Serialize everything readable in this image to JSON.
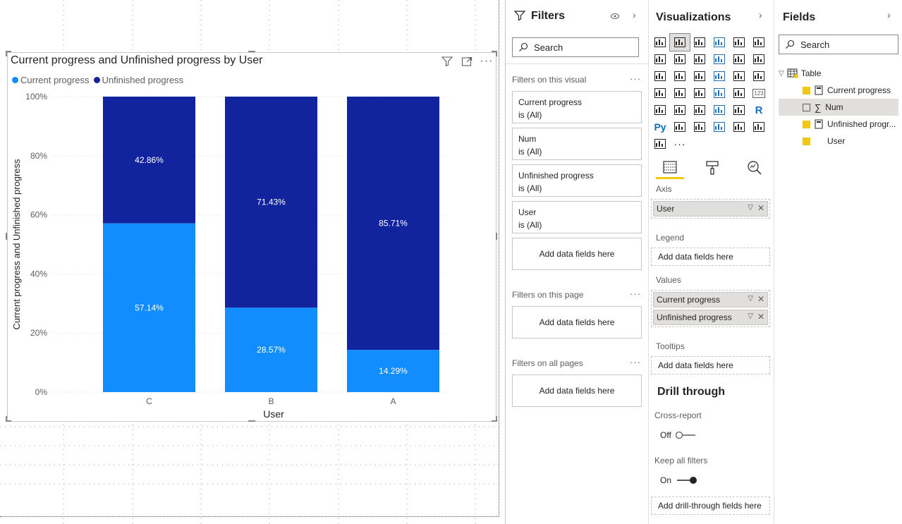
{
  "chart_data": {
    "type": "bar",
    "stacked": true,
    "normalized": true,
    "title": "Current progress and Unfinished progress by User",
    "xlabel": "User",
    "ylabel": "Current progress and Unfinished progress",
    "categories": [
      "C",
      "B",
      "A"
    ],
    "series": [
      {
        "name": "Current progress",
        "values": [
          57.14,
          28.57,
          14.29
        ],
        "labels": [
          "57.14%",
          "28.57%",
          "14.29%"
        ],
        "color": "#118dff"
      },
      {
        "name": "Unfinished progress",
        "values": [
          42.86,
          71.43,
          85.71
        ],
        "labels": [
          "42.86%",
          "71.43%",
          "85.71%"
        ],
        "color": "#12239e"
      }
    ],
    "yticks": [
      "0%",
      "20%",
      "40%",
      "60%",
      "80%",
      "100%"
    ],
    "ylim": [
      0,
      100
    ],
    "legend": "top-left",
    "grid": true
  },
  "filters": {
    "title": "Filters",
    "search_placeholder": "Search",
    "on_visual_label": "Filters on this visual",
    "cards": [
      {
        "name": "Current progress",
        "state": "is (All)"
      },
      {
        "name": "Num",
        "state": "is (All)"
      },
      {
        "name": "Unfinished progress",
        "state": "is (All)"
      },
      {
        "name": "User",
        "state": "is (All)"
      }
    ],
    "add_fields": "Add data fields here",
    "on_page_label": "Filters on this page",
    "on_all_pages_label": "Filters on all pages",
    "more": "···"
  },
  "visualizations": {
    "title": "Visualizations",
    "more_icon": "···",
    "axis_label": "Axis",
    "axis_field": "User",
    "legend_label": "Legend",
    "legend_drop": "Add data fields here",
    "values_label": "Values",
    "values_fields": [
      "Current progress",
      "Unfinished progress"
    ],
    "tooltips_label": "Tooltips",
    "tooltips_drop": "Add data fields here",
    "drill_title": "Drill through",
    "cross_report_label": "Cross-report",
    "cross_report_state": "Off",
    "keep_filters_label": "Keep all filters",
    "keep_filters_state": "On",
    "drill_drop": "Add drill-through fields here",
    "py_icon": "Py",
    "r_icon": "R",
    "kpi_icon": "123"
  },
  "fields": {
    "title": "Fields",
    "search_placeholder": "Search",
    "table_name": "Table",
    "items": [
      {
        "name": "Current progress",
        "checked": true
      },
      {
        "name": "Num",
        "checked": false
      },
      {
        "name": "Unfinished progr...",
        "checked": true
      },
      {
        "name": "User",
        "checked": true
      }
    ]
  },
  "colors": {
    "accent": "#f2c811",
    "series1": "#118dff",
    "series2": "#12239e"
  }
}
